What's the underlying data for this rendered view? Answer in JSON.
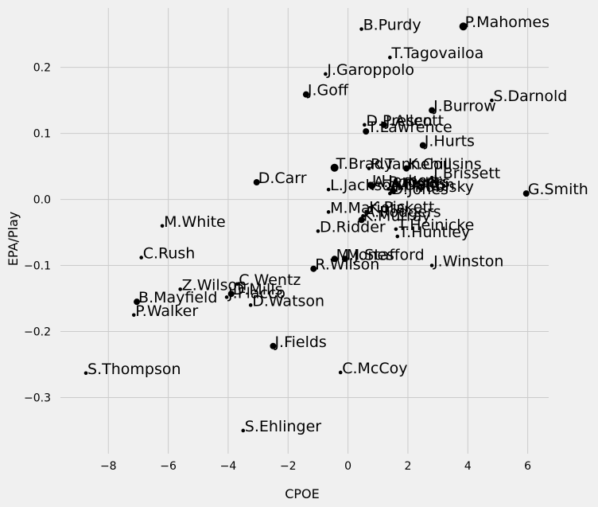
{
  "chart_data": {
    "type": "scatter",
    "title": "",
    "xlabel": "CPOE",
    "ylabel": "EPA/Play",
    "xlim": [
      -9.6,
      6.7
    ],
    "ylim": [
      -0.385,
      0.29
    ],
    "x_ticks": [
      -8,
      -6,
      -4,
      -2,
      0,
      2,
      4,
      6
    ],
    "y_ticks": [
      -0.3,
      -0.2,
      -0.1,
      0.0,
      0.1,
      0.2
    ],
    "x_tick_labels": [
      "−8",
      "−6",
      "−4",
      "−2",
      "0",
      "2",
      "4",
      "6"
    ],
    "y_tick_labels": [
      "−0.3",
      "−0.2",
      "−0.1",
      "0.0",
      "0.1",
      "0.2"
    ],
    "grid": true,
    "legend": false,
    "marker_color": "#000000",
    "background_color": "#f0f0f0",
    "grid_color": "#cbcbcb",
    "points": [
      {
        "label": "P.Mahomes",
        "x": 3.85,
        "y": 0.262,
        "size": "large"
      },
      {
        "label": "B.Purdy",
        "x": 0.45,
        "y": 0.258,
        "size": "small"
      },
      {
        "label": "T.Tagovailoa",
        "x": 1.4,
        "y": 0.215,
        "size": "small"
      },
      {
        "label": "J.Garoppolo",
        "x": -0.75,
        "y": 0.19,
        "size": "small"
      },
      {
        "label": "J.Goff",
        "x": -1.4,
        "y": 0.159,
        "size": "medium"
      },
      {
        "label": "S.Darnold",
        "x": 4.8,
        "y": 0.15,
        "size": "small"
      },
      {
        "label": "J.Burrow",
        "x": 2.8,
        "y": 0.135,
        "size": "medium"
      },
      {
        "label": "D.Prescott",
        "x": 0.55,
        "y": 0.113,
        "size": "small"
      },
      {
        "label": "J.Allen",
        "x": 1.2,
        "y": 0.113,
        "size": "medium"
      },
      {
        "label": "T.Lawrence",
        "x": 0.6,
        "y": 0.103,
        "size": "medium"
      },
      {
        "label": "J.Hurts",
        "x": 2.5,
        "y": 0.082,
        "size": "medium"
      },
      {
        "label": "T.Brady",
        "x": -0.45,
        "y": 0.048,
        "size": "large"
      },
      {
        "label": "R.Tannehill",
        "x": 0.7,
        "y": 0.047,
        "size": "small"
      },
      {
        "label": "K.Cousins",
        "x": 1.95,
        "y": 0.047,
        "size": "medium"
      },
      {
        "label": "J.Brissett",
        "x": 2.8,
        "y": 0.033,
        "size": "small"
      },
      {
        "label": "D.Carr",
        "x": -3.05,
        "y": 0.026,
        "size": "medium"
      },
      {
        "label": "J.Herbert",
        "x": 0.75,
        "y": 0.022,
        "size": "medium"
      },
      {
        "label": "A.Rodgers",
        "x": 0.8,
        "y": 0.02,
        "size": "medium"
      },
      {
        "label": "L.Jackson",
        "x": -0.65,
        "y": 0.015,
        "size": "small"
      },
      {
        "label": "A.Dalton",
        "x": 1.35,
        "y": 0.016,
        "size": "small"
      },
      {
        "label": "J.Fields ",
        "x": 1.5,
        "y": 0.018,
        "size": "small"
      },
      {
        "label": "M.Trubisky",
        "x": 1.5,
        "y": 0.013,
        "size": "medium"
      },
      {
        "label": "D.Jones",
        "x": 1.4,
        "y": 0.009,
        "size": "small"
      },
      {
        "label": "G.Smith",
        "x": 5.95,
        "y": 0.009,
        "size": "medium"
      },
      {
        "label": "M.Mariota",
        "x": -0.65,
        "y": -0.019,
        "size": "small"
      },
      {
        "label": "K.Pickett",
        "x": 0.65,
        "y": -0.018,
        "size": "small"
      },
      {
        "label": "A.Rodgers ",
        "x": 0.5,
        "y": -0.025,
        "size": "small"
      },
      {
        "label": "K.Murray",
        "x": 0.45,
        "y": -0.031,
        "size": "medium"
      },
      {
        "label": "D.Ridder",
        "x": -1.0,
        "y": -0.048,
        "size": "small"
      },
      {
        "label": "M.White",
        "x": -6.2,
        "y": -0.04,
        "size": "small"
      },
      {
        "label": "T.Heinicke",
        "x": 1.6,
        "y": -0.045,
        "size": "small"
      },
      {
        "label": "T.Huntley",
        "x": 1.65,
        "y": -0.056,
        "size": "small"
      },
      {
        "label": "C.Rush",
        "x": -6.9,
        "y": -0.088,
        "size": "small"
      },
      {
        "label": "M.Jones",
        "x": -0.45,
        "y": -0.09,
        "size": "medium"
      },
      {
        "label": "M.Stafford",
        "x": -0.1,
        "y": -0.09,
        "size": "medium"
      },
      {
        "label": "J.Winston",
        "x": 2.8,
        "y": -0.1,
        "size": "small"
      },
      {
        "label": "R.Wilson",
        "x": -1.15,
        "y": -0.105,
        "size": "medium"
      },
      {
        "label": "C.Wentz",
        "x": -3.7,
        "y": -0.128,
        "size": "small"
      },
      {
        "label": "Z.Wilson",
        "x": -5.6,
        "y": -0.136,
        "size": "small"
      },
      {
        "label": "D.Mills",
        "x": -3.9,
        "y": -0.143,
        "size": "medium"
      },
      {
        "label": "B.Mayfield",
        "x": -7.05,
        "y": -0.155,
        "size": "medium"
      },
      {
        "label": "J.Flacco",
        "x": -4.05,
        "y": -0.148,
        "size": "small"
      },
      {
        "label": "D.Watson",
        "x": -3.25,
        "y": -0.16,
        "size": "small"
      },
      {
        "label": "P.Walker",
        "x": -7.15,
        "y": -0.175,
        "size": "small"
      },
      {
        "label": "J.Fields",
        "x": -2.5,
        "y": -0.222,
        "size": "medium"
      },
      {
        "label": "S.Thompson",
        "x": -8.75,
        "y": -0.263,
        "size": "small"
      },
      {
        "label": "C.McCoy",
        "x": -0.25,
        "y": -0.262,
        "size": "small"
      },
      {
        "label": "S.Ehlinger",
        "x": -3.5,
        "y": -0.35,
        "size": "small"
      }
    ]
  }
}
